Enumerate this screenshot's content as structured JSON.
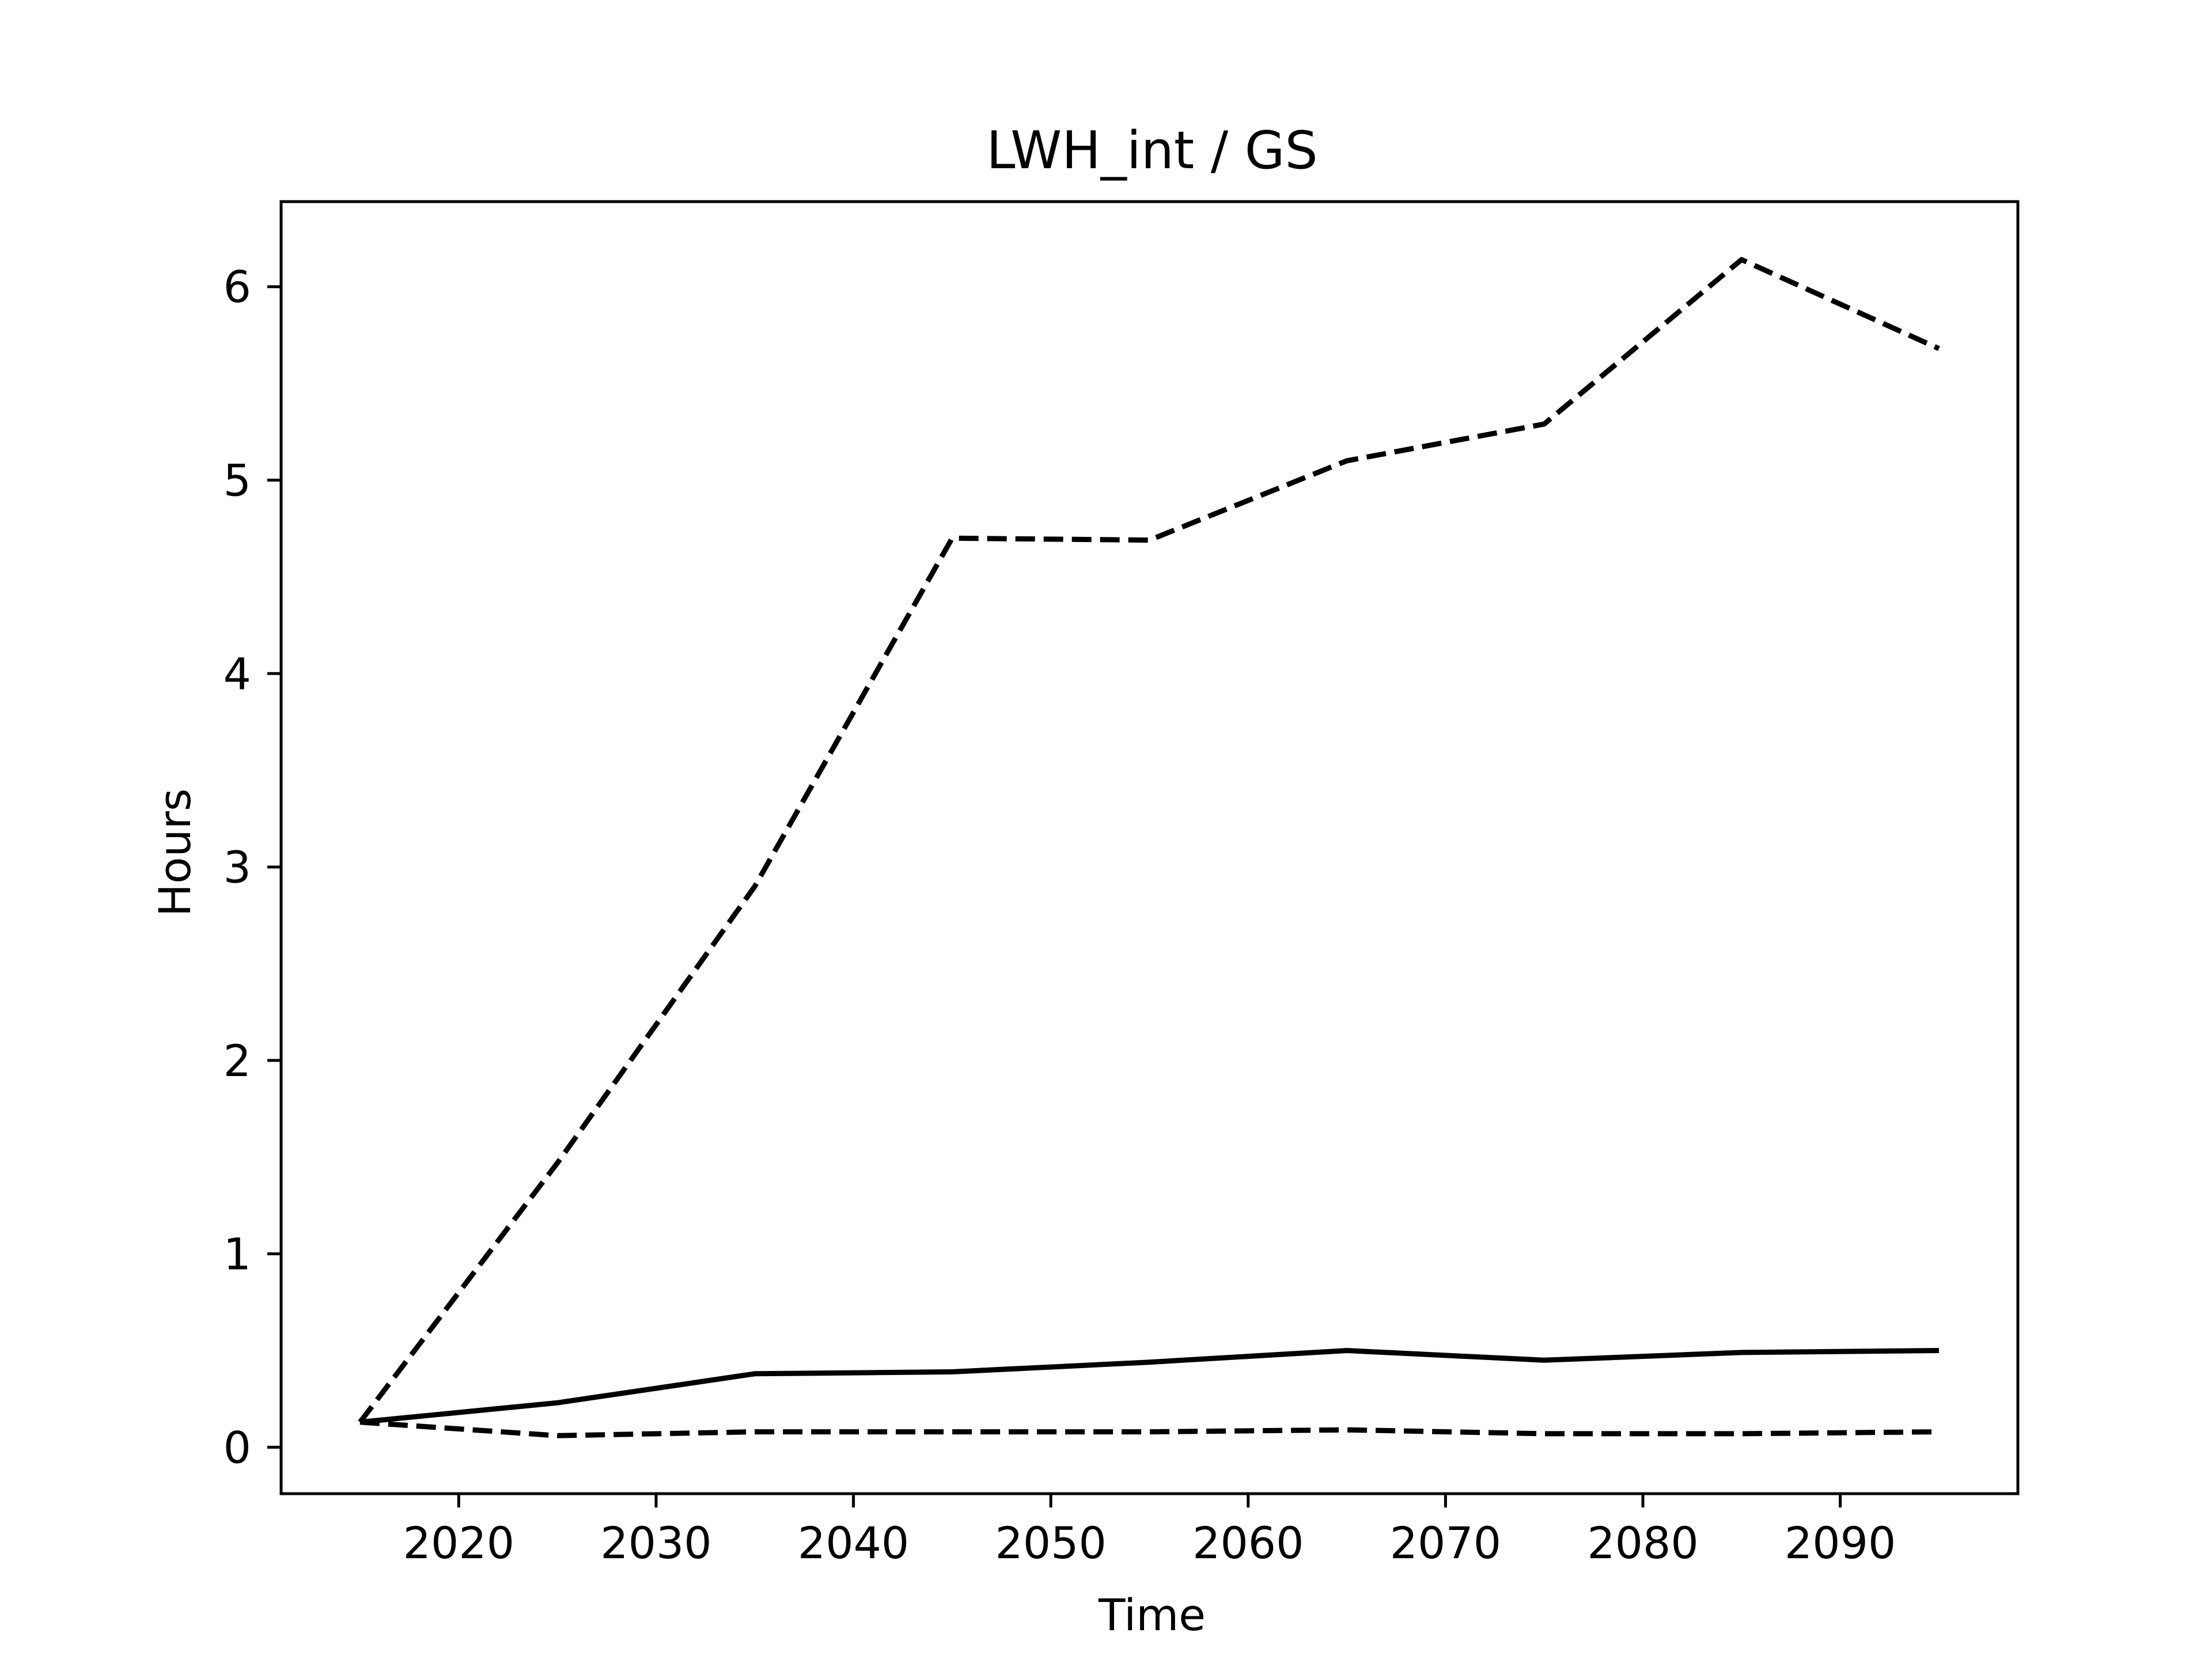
{
  "chart_data": {
    "type": "line",
    "title": "LWH_int / GS",
    "xlabel": "Time",
    "ylabel": "Hours",
    "xlim": [
      2011,
      2099
    ],
    "ylim": [
      -0.24,
      6.44
    ],
    "xticks": [
      2020,
      2030,
      2040,
      2050,
      2060,
      2070,
      2080,
      2090
    ],
    "yticks": [
      0,
      1,
      2,
      3,
      4,
      5,
      6
    ],
    "grid": false,
    "legend": "none",
    "x": [
      2015,
      2025,
      2035,
      2045,
      2055,
      2065,
      2075,
      2085,
      2095
    ],
    "series": [
      {
        "style": "solid",
        "color": "#000000",
        "values": [
          0.13,
          0.23,
          0.38,
          0.39,
          0.44,
          0.5,
          0.45,
          0.49,
          0.5
        ]
      },
      {
        "style": "dashed",
        "color": "#000000",
        "values": [
          0.13,
          1.47,
          2.9,
          4.7,
          4.69,
          5.1,
          5.29,
          6.14,
          5.68
        ]
      },
      {
        "style": "dashed",
        "color": "#000000",
        "values": [
          0.13,
          0.06,
          0.08,
          0.08,
          0.08,
          0.09,
          0.07,
          0.07,
          0.08
        ]
      }
    ]
  }
}
